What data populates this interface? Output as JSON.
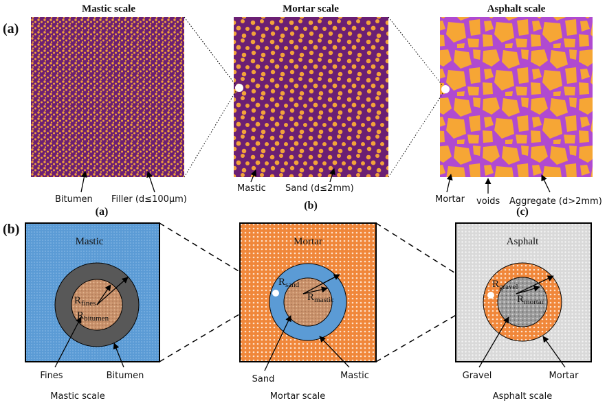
{
  "panel_a": {
    "label": "(a)",
    "images": [
      {
        "title": "Mastic scale",
        "caption": "(a)",
        "annotations": [
          "Bitumen",
          "Filler (d≤100μm)"
        ]
      },
      {
        "title": "Mortar scale",
        "caption": "(b)",
        "annotations": [
          "Mastic",
          "Sand (d≤2mm)"
        ]
      },
      {
        "title": "Asphalt scale",
        "caption": "(c)",
        "annotations": [
          "Mortar",
          "voids",
          "Aggregate (d>2mm)"
        ]
      }
    ]
  },
  "panel_b": {
    "label": "(b)",
    "models": [
      {
        "title": "Mastic",
        "inner_radius": {
          "symbol": "R",
          "subscript": "fines"
        },
        "outer_radius": {
          "symbol": "R",
          "subscript": "bitumen"
        },
        "inner_label": "Fines",
        "outer_label": "Bitumen",
        "caption": "Mastic scale"
      },
      {
        "title": "Mortar",
        "inner_radius": {
          "symbol": "R",
          "subscript": "sand"
        },
        "outer_radius": {
          "symbol": "R",
          "subscript": "mastic"
        },
        "inner_label": "Sand",
        "outer_label": "Mastic",
        "caption": "Mortar scale"
      },
      {
        "title": "Asphalt",
        "inner_radius": {
          "symbol": "R",
          "subscript": "gravel"
        },
        "outer_radius": {
          "symbol": "R",
          "subscript": "mortar"
        },
        "inner_label": "Gravel",
        "outer_label": "Mortar",
        "caption": "Asphalt scale"
      }
    ]
  }
}
